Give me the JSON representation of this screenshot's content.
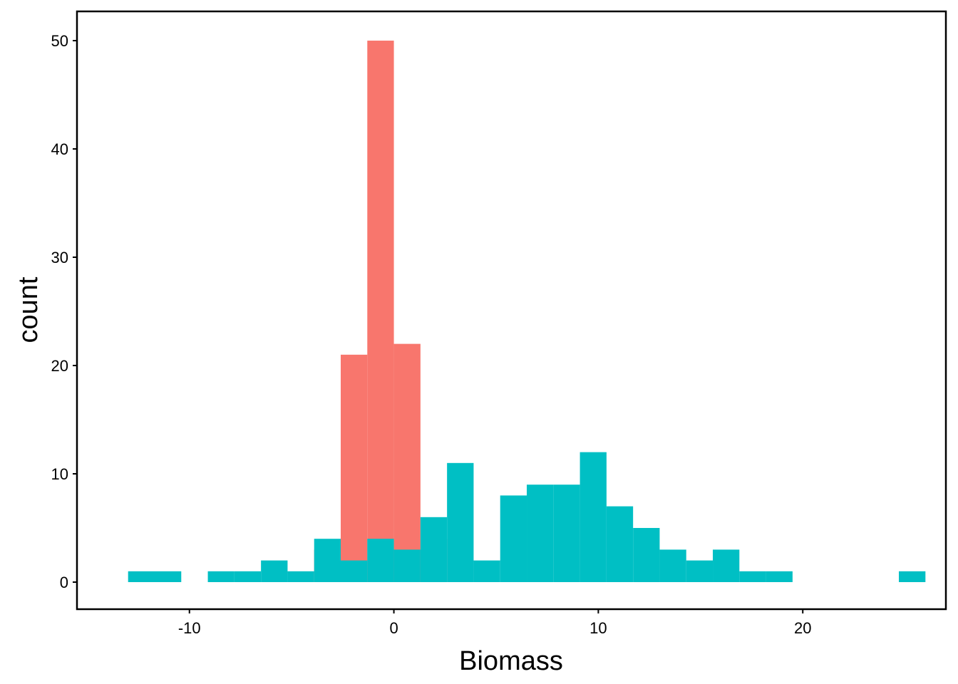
{
  "chart_data": {
    "type": "bar",
    "xlabel": "Biomass",
    "ylabel": "count",
    "xlim": [
      -15.5,
      27
    ],
    "ylim": [
      -2.5,
      52.7
    ],
    "x_ticks": [
      "-10",
      "0",
      "10",
      "20"
    ],
    "y_ticks": [
      "0",
      "10",
      "20",
      "30",
      "40",
      "50"
    ],
    "bin_width": 1.3,
    "series": [
      {
        "color": "#F8766D",
        "x": [
          -3.25,
          -1.95,
          -0.65,
          0.65,
          1.95
        ],
        "values": [
          3,
          21,
          50,
          22,
          4
        ]
      },
      {
        "color": "#00BFC4",
        "x": [
          -12.35,
          -11.05,
          -8.45,
          -7.15,
          -5.85,
          -4.55,
          -3.25,
          -1.95,
          -0.65,
          0.65,
          1.95,
          3.25,
          4.55,
          5.85,
          7.15,
          8.45,
          9.75,
          11.05,
          12.35,
          13.65,
          14.95,
          16.25,
          17.55,
          18.85,
          25.35
        ],
        "values": [
          1,
          1,
          1,
          1,
          2,
          1,
          4,
          2,
          4,
          3,
          6,
          11,
          2,
          8,
          9,
          9,
          12,
          7,
          5,
          3,
          2,
          3,
          1,
          1,
          1
        ]
      }
    ]
  }
}
